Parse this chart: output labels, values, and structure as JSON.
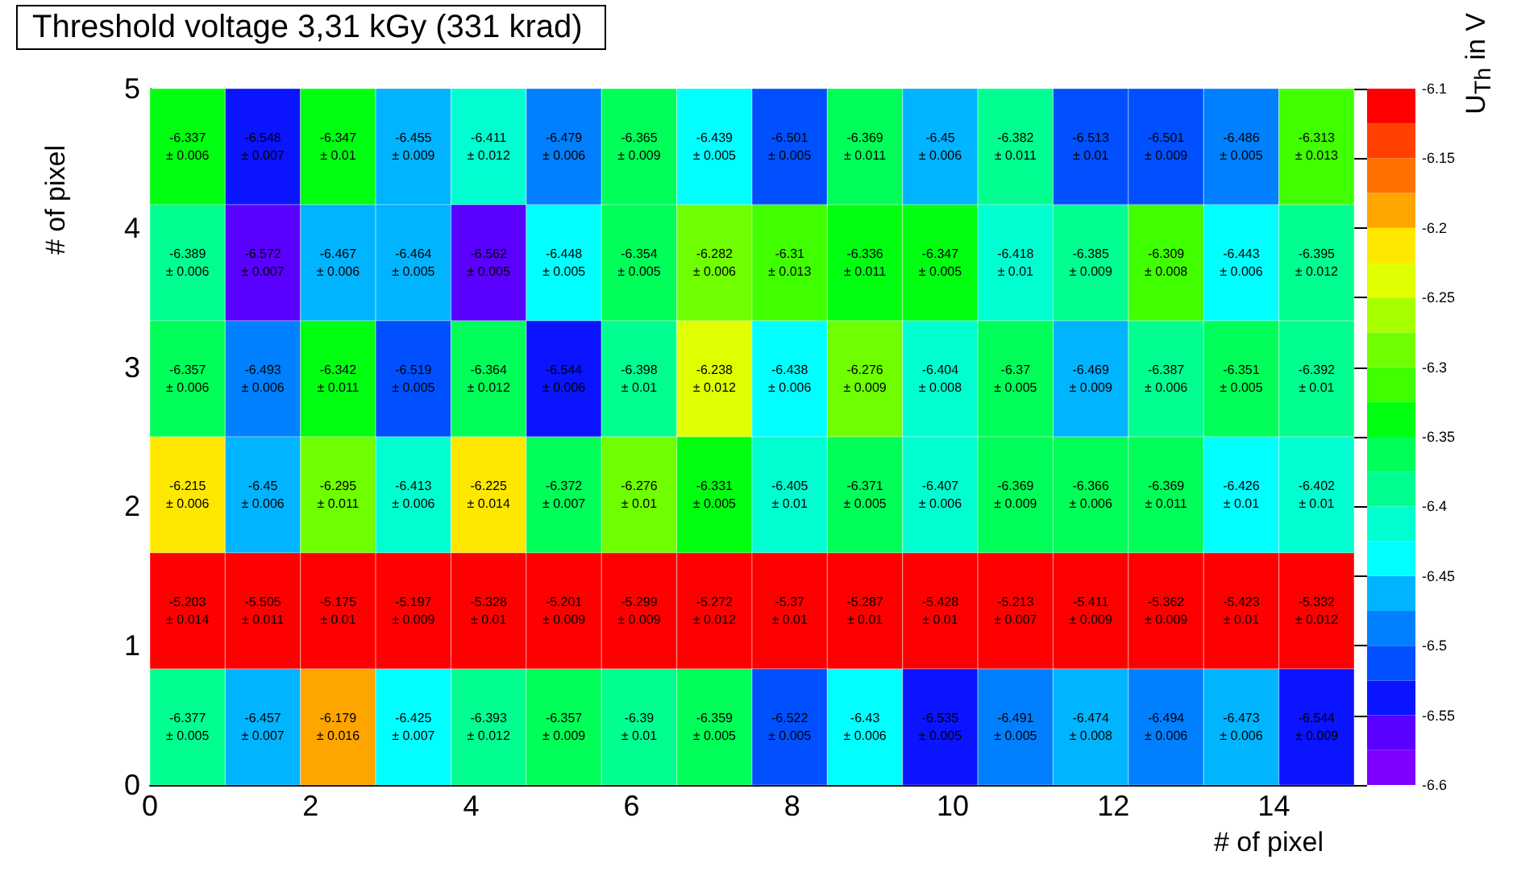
{
  "chart_data": {
    "type": "heatmap",
    "title": "Threshold voltage 3,31 kGy (331 krad)",
    "xlabel": "# of pixel",
    "ylabel": "# of pixel",
    "clabel": "U$_{Th}$ in V",
    "xlim": [
      0,
      15
    ],
    "xticks": [
      0,
      2,
      4,
      6,
      8,
      10,
      12,
      14
    ],
    "ylim": [
      0,
      5
    ],
    "yticks": [
      0,
      1,
      2,
      3,
      4,
      5
    ],
    "clim": [
      -6.6,
      -6.1
    ],
    "cticks": [
      -6.6,
      -6.55,
      -6.5,
      -6.45,
      -6.4,
      -6.35,
      -6.3,
      -6.25,
      -6.2,
      -6.15,
      -6.1
    ],
    "cells": [
      [
        -6.337,
        -6.548,
        -6.347,
        -6.455,
        -6.411,
        -6.479,
        -6.365,
        -6.439,
        -6.501,
        -6.369,
        -6.45,
        -6.382,
        -6.513,
        -6.501,
        -6.486,
        -6.313
      ],
      [
        -6.389,
        -6.572,
        -6.467,
        -6.464,
        -6.562,
        -6.448,
        -6.354,
        -6.282,
        -6.31,
        -6.336,
        -6.347,
        -6.418,
        -6.385,
        -6.309,
        -6.443,
        -6.395
      ],
      [
        -6.357,
        -6.493,
        -6.342,
        -6.519,
        -6.364,
        -6.544,
        -6.398,
        -6.238,
        -6.438,
        -6.276,
        -6.404,
        -6.37,
        -6.469,
        -6.387,
        -6.351,
        -6.392
      ],
      [
        -6.215,
        -6.45,
        -6.295,
        -6.413,
        -6.225,
        -6.372,
        -6.276,
        -6.331,
        -6.405,
        -6.371,
        -6.407,
        -6.369,
        -6.366,
        -6.369,
        -6.426,
        -6.402
      ],
      [
        -5.203,
        -5.505,
        -5.175,
        -5.197,
        -5.328,
        -5.201,
        -5.299,
        -5.272,
        -5.37,
        -5.287,
        -5.428,
        -5.213,
        -5.411,
        -5.362,
        -5.423,
        -5.332
      ],
      [
        -6.377,
        -6.457,
        -6.179,
        -6.425,
        -6.393,
        -6.357,
        -6.39,
        -6.359,
        -6.522,
        -6.43,
        -6.535,
        -6.491,
        -6.474,
        -6.494,
        -6.473,
        -6.544
      ]
    ],
    "cell_labels": [
      [
        "-6.337\n± 0.006",
        "-6.548\n± 0.007",
        "-6.347\n± 0.01",
        "-6.455\n± 0.009",
        "-6.411\n± 0.012",
        "-6.479\n± 0.006",
        "-6.365\n± 0.009",
        "-6.439\n± 0.005",
        "-6.501\n± 0.005",
        "-6.369\n± 0.011",
        "-6.45\n± 0.006",
        "-6.382\n± 0.011",
        "-6.513\n± 0.01",
        "-6.501\n± 0.009",
        "-6.486\n± 0.005",
        "-6.313\n± 0.013"
      ],
      [
        "-6.389\n± 0.006",
        "-6.572\n± 0.007",
        "-6.467\n± 0.006",
        "-6.464\n± 0.005",
        "-6.562\n± 0.005",
        "-6.448\n± 0.005",
        "-6.354\n± 0.005",
        "-6.282\n± 0.006",
        "-6.31\n± 0.013",
        "-6.336\n± 0.011",
        "-6.347\n± 0.005",
        "-6.418\n± 0.01",
        "-6.385\n± 0.009",
        "-6.309\n± 0.008",
        "-6.443\n± 0.006",
        "-6.395\n± 0.012"
      ],
      [
        "-6.357\n± 0.006",
        "-6.493\n± 0.006",
        "-6.342\n± 0.011",
        "-6.519\n± 0.005",
        "-6.364\n± 0.012",
        "-6.544\n± 0.006",
        "-6.398\n± 0.01",
        "-6.238\n± 0.012",
        "-6.438\n± 0.006",
        "-6.276\n± 0.009",
        "-6.404\n± 0.008",
        "-6.37\n± 0.005",
        "-6.469\n± 0.009",
        "-6.387\n± 0.006",
        "-6.351\n± 0.005",
        "-6.392\n± 0.01"
      ],
      [
        "-6.215\n± 0.006",
        "-6.45\n± 0.006",
        "-6.295\n± 0.011",
        "-6.413\n± 0.006",
        "-6.225\n± 0.014",
        "-6.372\n± 0.007",
        "-6.276\n± 0.01",
        "-6.331\n± 0.005",
        "-6.405\n± 0.01",
        "-6.371\n± 0.005",
        "-6.407\n± 0.006",
        "-6.369\n± 0.009",
        "-6.366\n± 0.006",
        "-6.369\n± 0.011",
        "-6.426\n± 0.01",
        "-6.402\n± 0.01"
      ],
      [
        "-5.203\n± 0.014",
        "-5.505\n± 0.011",
        "-5.175\n± 0.01",
        "-5.197\n± 0.009",
        "-5.328\n± 0.01",
        "-5.201\n± 0.009",
        "-5.299\n± 0.009",
        "-5.272\n± 0.012",
        "-5.37\n± 0.01",
        "-5.287\n± 0.01",
        "-5.428\n± 0.01",
        "-5.213\n± 0.007",
        "-5.411\n± 0.009",
        "-5.362\n± 0.009",
        "-5.423\n± 0.01",
        "-5.332\n± 0.012"
      ],
      [
        "-6.377\n± 0.005",
        "-6.457\n± 0.007",
        "-6.179\n± 0.016",
        "-6.425\n± 0.007",
        "-6.393\n± 0.012",
        "-6.357\n± 0.009",
        "-6.39\n± 0.01",
        "-6.359\n± 0.005",
        "-6.522\n± 0.005",
        "-6.43\n± 0.006",
        "-6.535\n± 0.005",
        "-6.491\n± 0.005",
        "-6.474\n± 0.008",
        "-6.494\n± 0.006",
        "-6.473\n± 0.006",
        "-6.544\n± 0.009"
      ]
    ]
  }
}
